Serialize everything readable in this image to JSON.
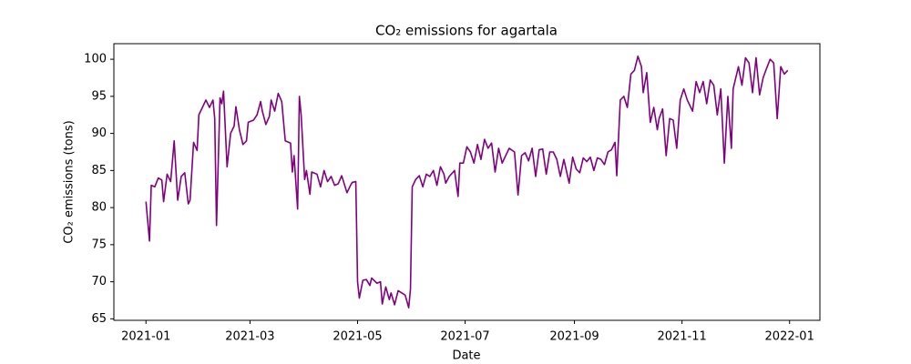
{
  "chart_data": {
    "type": "line",
    "title": "CO₂ emissions for agartala",
    "x_label": "Date",
    "y_label": "CO₂ emissions (tons)",
    "x": [
      0,
      2,
      3,
      5,
      7,
      9,
      10,
      12,
      14,
      16,
      18,
      20,
      22,
      24,
      25,
      27,
      29,
      30,
      32,
      34,
      36,
      38,
      39,
      40,
      42,
      43,
      44,
      46,
      48,
      50,
      51,
      53,
      55,
      57,
      58,
      61,
      63,
      65,
      66,
      68,
      70,
      71,
      73,
      75,
      77,
      79,
      82,
      83,
      84,
      86,
      87,
      88,
      90,
      91,
      93,
      94,
      97,
      99,
      101,
      103,
      105,
      107,
      109,
      111,
      114,
      116,
      117,
      119,
      120,
      121,
      123,
      125,
      127,
      128,
      131,
      133,
      134,
      136,
      138,
      139,
      141,
      143,
      145,
      147,
      149,
      150,
      151,
      153,
      155,
      157,
      159,
      161,
      163,
      165,
      167,
      169,
      170,
      172,
      175,
      177,
      178,
      180,
      182,
      184,
      186,
      188,
      190,
      192,
      194,
      196,
      198,
      200,
      202,
      204,
      206,
      209,
      211,
      213,
      215,
      217,
      219,
      221,
      223,
      225,
      227,
      229,
      231,
      233,
      235,
      237,
      240,
      242,
      244,
      246,
      248,
      250,
      252,
      254,
      256,
      258,
      260,
      262,
      264,
      266,
      267,
      269,
      271,
      273,
      275,
      277,
      279,
      281,
      282,
      284,
      286,
      288,
      290,
      291,
      293,
      295,
      297,
      299,
      301,
      303,
      305,
      307,
      310,
      312,
      314,
      316,
      318,
      320,
      322,
      324,
      326,
      328,
      330,
      332,
      333,
      336,
      338,
      340,
      342,
      344,
      346,
      348,
      350,
      352,
      354,
      356,
      358,
      360,
      362,
      364
    ],
    "series": [
      {
        "name": "agartala",
        "color": "#800080",
        "values": [
          80.8,
          75.5,
          83,
          82.8,
          84,
          83.7,
          80.8,
          84.5,
          83.5,
          89,
          81,
          84.2,
          84.7,
          80.5,
          81,
          88.8,
          87.7,
          92.5,
          93.5,
          94.5,
          93.5,
          94.5,
          92,
          77.6,
          94.8,
          94,
          95.7,
          85.5,
          90,
          91,
          93.6,
          90.5,
          88.5,
          89,
          91.5,
          91.8,
          92.5,
          94.3,
          93,
          91.2,
          92.3,
          94.5,
          93,
          95.4,
          94.3,
          89,
          88.7,
          84.8,
          87,
          79.8,
          95,
          92.5,
          83.8,
          85,
          81.8,
          84.8,
          84.5,
          82.8,
          85,
          83.5,
          84.2,
          83,
          83.2,
          84.3,
          82,
          83,
          83.4,
          83.5,
          70,
          67.8,
          70.2,
          70.3,
          69.5,
          70.5,
          69.8,
          70,
          67,
          69.3,
          67.6,
          68.5,
          66.9,
          68.8,
          68.5,
          68.2,
          66.5,
          69,
          82.8,
          83.8,
          84.3,
          82.8,
          84.5,
          84.2,
          85,
          83,
          85.5,
          84.5,
          83.3,
          84.2,
          85,
          81.5,
          86,
          86,
          88.2,
          87.5,
          86,
          88.5,
          86.5,
          89.2,
          88,
          88.7,
          84.8,
          88,
          86,
          87,
          88,
          87.5,
          81.7,
          87,
          87.4,
          86.3,
          88,
          84.2,
          87.8,
          87.9,
          84.5,
          87.5,
          87.5,
          86.5,
          84.2,
          86.5,
          83.3,
          86.8,
          85.2,
          84.7,
          86.7,
          86.2,
          86.8,
          85,
          86.7,
          86.5,
          85.8,
          87.5,
          87.8,
          88.8,
          84.3,
          94.5,
          95,
          93.5,
          98,
          98.5,
          100.4,
          99,
          95.5,
          98.2,
          91.5,
          93.5,
          90.5,
          92,
          93.3,
          87,
          92,
          91.8,
          88,
          94.5,
          96,
          94.5,
          93,
          97,
          95.5,
          97,
          94,
          97.2,
          96.5,
          92.5,
          96,
          86,
          95,
          88,
          96,
          99,
          96.5,
          100.2,
          99.5,
          95.5,
          100.2,
          95.2,
          97.5,
          98.8,
          100,
          99.5,
          92,
          99,
          98,
          98.5
        ]
      }
    ],
    "xlim": [
      -18.2,
      382.2
    ],
    "xticks": [
      {
        "value": 0,
        "label": "2021-01"
      },
      {
        "value": 59,
        "label": "2021-03"
      },
      {
        "value": 120,
        "label": "2021-05"
      },
      {
        "value": 181,
        "label": "2021-07"
      },
      {
        "value": 243,
        "label": "2021-09"
      },
      {
        "value": 304,
        "label": "2021-11"
      },
      {
        "value": 365,
        "label": "2022-01"
      }
    ],
    "ylim": [
      64.8,
      102.1
    ],
    "yticks": [
      65,
      70,
      75,
      80,
      85,
      90,
      95,
      100
    ],
    "grid": false
  }
}
